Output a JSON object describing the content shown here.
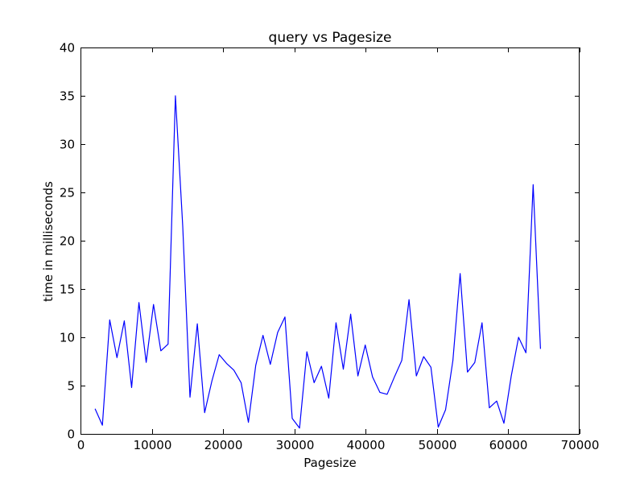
{
  "chart_data": {
    "type": "line",
    "title": "query vs Pagesize",
    "xlabel": "Pagesize",
    "ylabel": "time in milliseconds",
    "xlim": [
      0,
      70000
    ],
    "ylim": [
      0,
      40
    ],
    "xticks": [
      0,
      10000,
      20000,
      30000,
      40000,
      50000,
      60000,
      70000
    ],
    "yticks": [
      0,
      5,
      10,
      15,
      20,
      25,
      30,
      35,
      40
    ],
    "grid": false,
    "colors": {
      "line": "#0000ff"
    },
    "series": [
      {
        "x": [
          2048,
          3072,
          4096,
          5120,
          6144,
          7168,
          8192,
          9216,
          10240,
          11264,
          12288,
          13312,
          14336,
          15360,
          16384,
          17408,
          18432,
          19456,
          20480,
          21504,
          22528,
          23552,
          24576,
          25600,
          26624,
          27648,
          28672,
          29696,
          30720,
          31744,
          32768,
          33792,
          34816,
          35840,
          36864,
          37888,
          38912,
          39936,
          40960,
          41984,
          43008,
          44032,
          45056,
          46080,
          47104,
          48128,
          49152,
          50176,
          51200,
          52224,
          53248,
          54272,
          55296,
          56320,
          57344,
          58368,
          59392,
          60416,
          61440,
          62464,
          63488,
          64512
        ],
        "y": [
          2.6,
          0.9,
          11.8,
          7.9,
          11.7,
          4.8,
          13.6,
          7.4,
          13.4,
          8.6,
          9.3,
          35.0,
          21.5,
          3.8,
          11.4,
          2.2,
          5.5,
          8.2,
          7.3,
          6.6,
          5.3,
          1.2,
          7.1,
          10.2,
          7.2,
          10.5,
          12.1,
          1.6,
          0.6,
          8.5,
          5.3,
          7.0,
          3.7,
          11.5,
          6.7,
          12.4,
          6.0,
          9.2,
          5.9,
          4.3,
          4.1,
          5.9,
          7.6,
          13.9,
          6.0,
          8.0,
          6.9,
          0.7,
          2.5,
          7.6,
          16.6,
          6.4,
          7.4,
          11.5,
          2.7,
          3.4,
          1.1,
          6.0,
          10.0,
          8.4,
          25.8,
          8.8
        ]
      }
    ]
  }
}
